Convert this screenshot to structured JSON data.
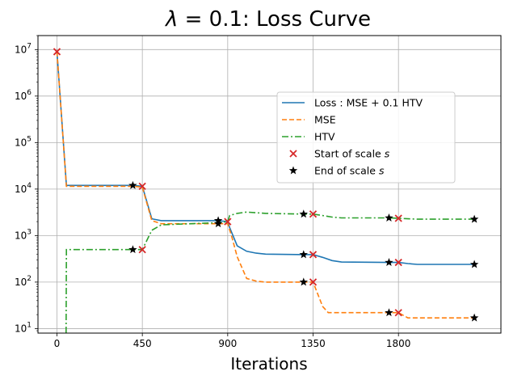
{
  "chart_data": {
    "type": "line",
    "title_lambda": "λ",
    "title_rest": " = 0.1: Loss Curve",
    "xlabel": "Iterations",
    "ylabel": "",
    "x_scale": "linear",
    "y_scale": "log",
    "xlim": [
      -100,
      2340
    ],
    "ylim": [
      8,
      20000000
    ],
    "xticks": [
      0,
      450,
      900,
      1350,
      1800
    ],
    "yticks": [
      {
        "value": 10,
        "base": "10",
        "exp": "1"
      },
      {
        "value": 100,
        "base": "10",
        "exp": "2"
      },
      {
        "value": 1000,
        "base": "10",
        "exp": "3"
      },
      {
        "value": 10000,
        "base": "10",
        "exp": "4"
      },
      {
        "value": 100000,
        "base": "10",
        "exp": "5"
      },
      {
        "value": 1000000,
        "base": "10",
        "exp": "6"
      },
      {
        "value": 10000000,
        "base": "10",
        "exp": "7"
      }
    ],
    "grid": true,
    "legend_position": "center-right",
    "series": [
      {
        "name": "Loss : MSE + 0.1 HTV",
        "color": "#1f77b4",
        "style": "solid",
        "x": [
          0,
          50,
          100,
          400,
          450,
          500,
          550,
          850,
          900,
          910,
          950,
          1000,
          1050,
          1100,
          1300,
          1350,
          1400,
          1450,
          1500,
          1750,
          1800,
          1850,
          1900,
          2200
        ],
        "y": [
          9000000,
          12000,
          12000,
          12000,
          11500,
          2300,
          2100,
          2100,
          2000,
          1500,
          600,
          460,
          420,
          400,
          390,
          390,
          340,
          290,
          270,
          265,
          265,
          250,
          240,
          240
        ]
      },
      {
        "name": "MSE",
        "color": "#ff7f0e",
        "style": "dashed",
        "x": [
          0,
          50,
          100,
          400,
          450,
          500,
          550,
          850,
          900,
          920,
          950,
          1000,
          1050,
          1100,
          1300,
          1350,
          1400,
          1430,
          1500,
          1750,
          1800,
          1850,
          2200
        ],
        "y": [
          9000000,
          11500,
          11500,
          11500,
          11000,
          2100,
          1800,
          1800,
          1800,
          1000,
          350,
          120,
          105,
          100,
          100,
          100,
          30,
          22,
          22,
          22,
          22,
          17,
          17
        ]
      },
      {
        "name": "HTV",
        "color": "#2ca02c",
        "style": "dashdot",
        "x": [
          48,
          50,
          100,
          400,
          450,
          500,
          550,
          850,
          900,
          910,
          950,
          1000,
          1050,
          1100,
          1300,
          1350,
          1400,
          1450,
          1500,
          1750,
          1800,
          1850,
          1900,
          2200
        ],
        "y": [
          8,
          500,
          500,
          500,
          500,
          1300,
          1700,
          1900,
          2000,
          2700,
          3000,
          3200,
          3100,
          3000,
          2900,
          2900,
          2700,
          2500,
          2400,
          2400,
          2350,
          2300,
          2250,
          2250
        ]
      }
    ],
    "markers": [
      {
        "name": "Start of scale s",
        "label_prefix": "Start of scale ",
        "label_var": "s",
        "color": "#d62728",
        "symbol": "x",
        "points": [
          {
            "x": 0,
            "y": 9000000
          },
          {
            "x": 450,
            "y": 11500
          },
          {
            "x": 450,
            "y": 500
          },
          {
            "x": 900,
            "y": 2000
          },
          {
            "x": 1350,
            "y": 2900
          },
          {
            "x": 1350,
            "y": 390
          },
          {
            "x": 1350,
            "y": 100
          },
          {
            "x": 1800,
            "y": 2350
          },
          {
            "x": 1800,
            "y": 265
          },
          {
            "x": 1800,
            "y": 22
          }
        ]
      },
      {
        "name": "End of scale s",
        "label_prefix": "End of scale ",
        "label_var": "s",
        "color": "#000000",
        "symbol": "star",
        "points": [
          {
            "x": 400,
            "y": 12000
          },
          {
            "x": 400,
            "y": 500
          },
          {
            "x": 850,
            "y": 2100
          },
          {
            "x": 850,
            "y": 1800
          },
          {
            "x": 1300,
            "y": 2900
          },
          {
            "x": 1300,
            "y": 390
          },
          {
            "x": 1300,
            "y": 100
          },
          {
            "x": 1750,
            "y": 2400
          },
          {
            "x": 1750,
            "y": 265
          },
          {
            "x": 1750,
            "y": 22
          },
          {
            "x": 2200,
            "y": 2250
          },
          {
            "x": 2200,
            "y": 240
          },
          {
            "x": 2200,
            "y": 17
          }
        ]
      }
    ]
  }
}
